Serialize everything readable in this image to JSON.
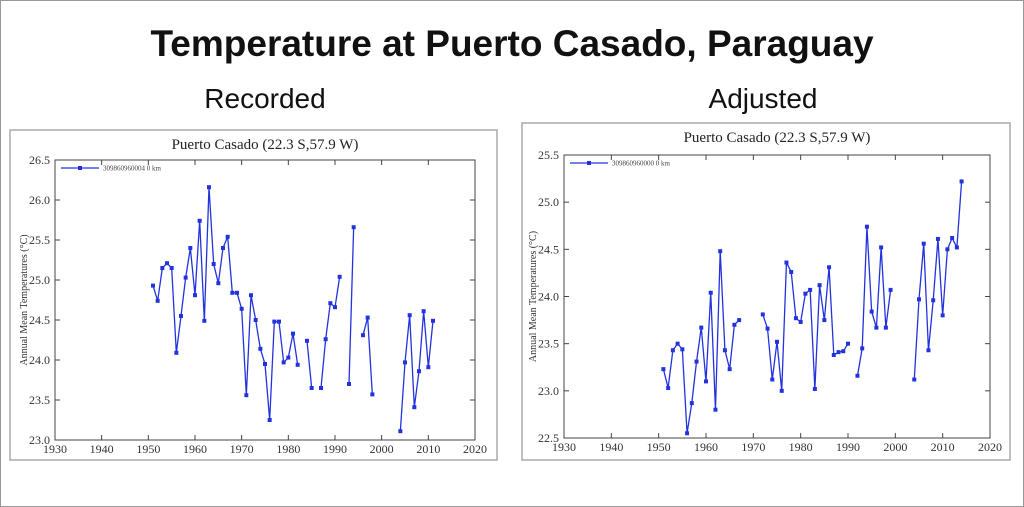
{
  "title": "Temperature at Puerto Casado, Paraguay",
  "chart_data": [
    {
      "type": "line",
      "heading": "Recorded",
      "title": "Puerto Casado (22.3 S,57.9 W)",
      "ylabel": "Annual Mean Temperatures (°C)",
      "xlim": [
        1930,
        2020
      ],
      "xticks": [
        1930,
        1940,
        1950,
        1960,
        1970,
        1980,
        1990,
        2000,
        2010,
        2020
      ],
      "ylim": [
        23,
        26.5
      ],
      "yticks": [
        {
          "value": 23,
          "label": "23.0"
        },
        23.5,
        {
          "value": 24,
          "label": "24.0"
        },
        24.5,
        {
          "value": 25,
          "label": "25.0"
        },
        25.5,
        {
          "value": 26,
          "label": "26.0"
        },
        26.5
      ],
      "grid": false,
      "legend": "upper left",
      "x": [
        1951,
        1952,
        1953,
        1954,
        1955,
        1956,
        1957,
        1958,
        1959,
        1960,
        1961,
        1962,
        1963,
        1964,
        1965,
        1966,
        1967,
        1968,
        1969,
        1970,
        1971,
        1972,
        1973,
        1974,
        1975,
        1976,
        1977,
        1978,
        1979,
        1980,
        1981,
        1982,
        1983,
        1984,
        1985,
        1986,
        1987,
        1988,
        1989,
        1990,
        1991,
        1992,
        1993,
        1994,
        1995,
        1996,
        1997,
        1998,
        1999,
        2000,
        2001,
        2002,
        2003,
        2004,
        2005,
        2006,
        2007,
        2008,
        2009,
        2010,
        2011
      ],
      "series": [
        {
          "name": "309860960004 0 km",
          "color": "#2233dd",
          "values": [
            24.93,
            24.74,
            25.15,
            25.21,
            25.15,
            24.09,
            24.55,
            25.03,
            25.4,
            24.81,
            25.74,
            24.49,
            26.16,
            25.2,
            24.96,
            25.4,
            25.54,
            24.84,
            24.84,
            24.64,
            23.56,
            24.81,
            24.5,
            24.14,
            23.95,
            23.25,
            24.48,
            24.48,
            23.97,
            24.03,
            24.33,
            23.94,
            null,
            24.24,
            23.65,
            null,
            23.65,
            24.26,
            24.71,
            24.66,
            25.04,
            null,
            23.7,
            25.66,
            null,
            24.31,
            24.53,
            23.57,
            null,
            null,
            null,
            null,
            null,
            23.11,
            23.97,
            24.56,
            23.41,
            23.86,
            24.61,
            23.91,
            24.49
          ]
        }
      ]
    },
    {
      "type": "line",
      "heading": "Adjusted",
      "title": "Puerto Casado (22.3 S,57.9 W)",
      "ylabel": "Annual Mean Temperatures (°C)",
      "xlim": [
        1930,
        2020
      ],
      "xticks": [
        1930,
        1940,
        1950,
        1960,
        1970,
        1980,
        1990,
        2000,
        2010,
        2020
      ],
      "ylim": [
        22.5,
        25.5
      ],
      "yticks": [
        22.5,
        {
          "value": 23,
          "label": "23.0"
        },
        23.5,
        {
          "value": 24,
          "label": "24.0"
        },
        24.5,
        {
          "value": 25,
          "label": "25.0"
        },
        25.5
      ],
      "grid": false,
      "legend": "upper left",
      "x": [
        1951,
        1952,
        1953,
        1954,
        1955,
        1956,
        1957,
        1958,
        1959,
        1960,
        1961,
        1962,
        1963,
        1964,
        1965,
        1966,
        1967,
        1968,
        1969,
        1970,
        1971,
        1972,
        1973,
        1974,
        1975,
        1976,
        1977,
        1978,
        1979,
        1980,
        1981,
        1982,
        1983,
        1984,
        1985,
        1986,
        1987,
        1988,
        1989,
        1990,
        1991,
        1992,
        1993,
        1994,
        1995,
        1996,
        1997,
        1998,
        1999,
        2000,
        2001,
        2002,
        2003,
        2004,
        2005,
        2006,
        2007,
        2008,
        2009,
        2010,
        2011,
        2012,
        2013,
        2014
      ],
      "series": [
        {
          "name": "309860960000 0 km",
          "color": "#2233dd",
          "values": [
            23.23,
            23.03,
            23.43,
            23.5,
            23.44,
            22.55,
            22.87,
            23.31,
            23.67,
            23.1,
            24.04,
            22.8,
            24.48,
            23.43,
            23.23,
            23.7,
            23.75,
            null,
            null,
            null,
            null,
            23.81,
            23.66,
            23.12,
            23.52,
            23.0,
            24.36,
            24.26,
            23.77,
            23.73,
            24.03,
            24.07,
            23.02,
            24.12,
            23.75,
            24.31,
            23.38,
            23.41,
            23.42,
            23.5,
            null,
            23.16,
            23.45,
            24.74,
            23.84,
            23.67,
            24.52,
            23.67,
            24.07,
            null,
            null,
            null,
            null,
            23.12,
            23.97,
            24.56,
            23.43,
            23.96,
            24.61,
            23.8,
            24.5,
            24.62,
            24.52,
            25.22
          ]
        }
      ]
    }
  ]
}
